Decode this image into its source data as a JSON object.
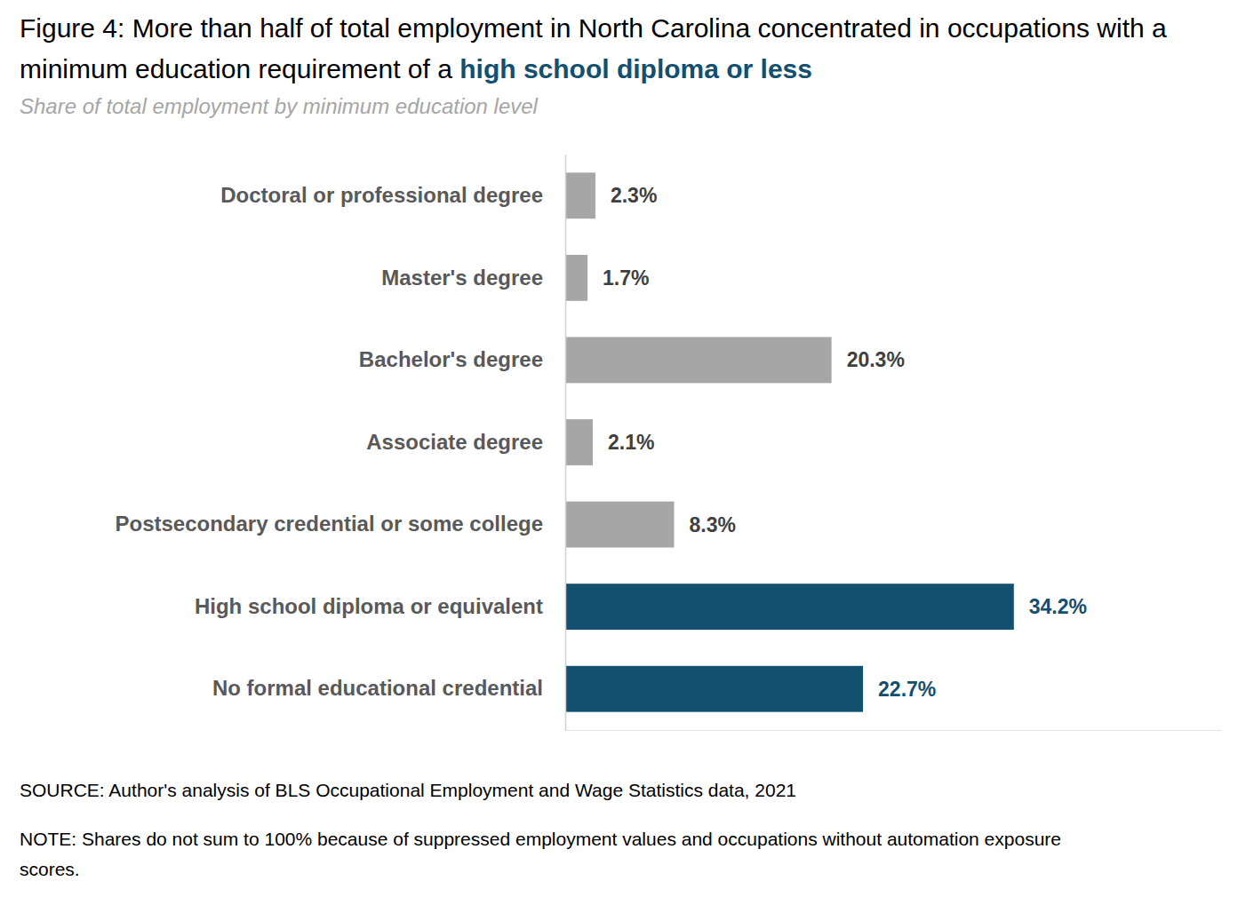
{
  "chart_data": {
    "type": "bar",
    "orientation": "horizontal",
    "title": "Figure 4: More than half of total employment in North Carolina concentrated in occupations with a minimum education requirement of a",
    "title_emphasis": "high school diploma or less",
    "subtitle": "Share of total employment by minimum education level",
    "categories": [
      "Doctoral or professional degree",
      "Master's degree",
      "Bachelor's degree",
      "Associate degree",
      "Postsecondary credential or some college",
      "High school diploma or equivalent",
      "No formal educational credential"
    ],
    "values": [
      2.3,
      1.7,
      20.3,
      2.1,
      8.3,
      34.2,
      22.7
    ],
    "value_labels": [
      "2.3%",
      "1.7%",
      "20.3%",
      "2.1%",
      "8.3%",
      "34.2%",
      "22.7%"
    ],
    "colors": [
      "#a6a6a6",
      "#a6a6a6",
      "#a6a6a6",
      "#a6a6a6",
      "#a6a6a6",
      "#134f6e",
      "#134f6e"
    ],
    "xlim": [
      0,
      50
    ],
    "tick_labels": false,
    "data_labels": true,
    "grid": false,
    "annotations": [
      "SOURCE: Author's analysis of BLS Occupational Employment and Wage Statistics data, 2021",
      "NOTE: Shares do not sum to 100% because of suppressed employment values and occupations without automation exposure scores."
    ]
  }
}
